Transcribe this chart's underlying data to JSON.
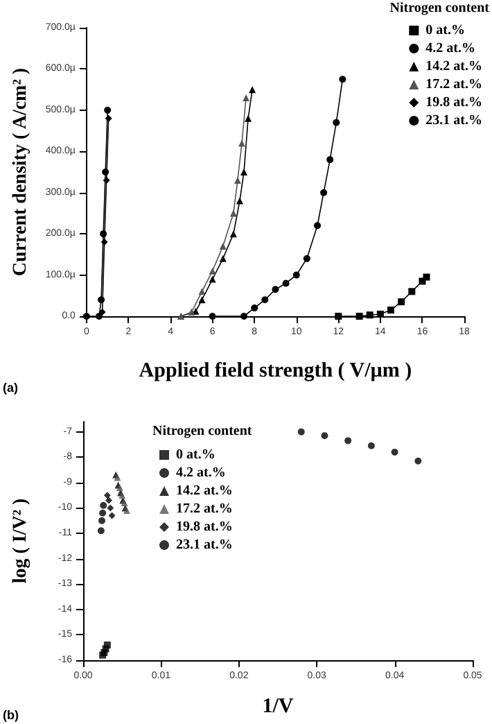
{
  "chart_data": [
    {
      "type": "line",
      "xlabel": "Applied field strength ( V/µm )",
      "ylabel": "Current density ( A/cm² )",
      "legend_title": "Nitrogen content",
      "legend": "top right",
      "line_style": "solid",
      "annotations": [
        "(a)"
      ],
      "xlim": [
        0,
        18
      ],
      "xticks": [
        0,
        2,
        4,
        6,
        8,
        10,
        12,
        14,
        16,
        18
      ],
      "ylim": [
        0,
        700
      ],
      "yticks": [
        {
          "value": 0,
          "label": "0.0"
        },
        {
          "value": 100,
          "label": "100.0µ"
        },
        {
          "value": 200,
          "label": "200.0µ"
        },
        {
          "value": 300,
          "label": "300.0µ"
        },
        {
          "value": 400,
          "label": "400.0µ"
        },
        {
          "value": 500,
          "label": "500.0µ"
        },
        {
          "value": 600,
          "label": "600.0µ"
        },
        {
          "value": 700,
          "label": "700.0µ"
        }
      ],
      "series": [
        {
          "name": "0 at.%",
          "color": "#000000",
          "marker": "square",
          "x": [
            12,
            13,
            13.5,
            14,
            14.5,
            15,
            15.5,
            16,
            16.2
          ],
          "values": [
            0,
            0,
            3,
            5,
            15,
            35,
            60,
            85,
            95
          ]
        },
        {
          "name": "4.2 at.%",
          "color": "#000000",
          "marker": "circle",
          "x": [
            6,
            7.5,
            8,
            8.5,
            9,
            9.5,
            10,
            10.5,
            11,
            11.3,
            11.6,
            11.9,
            12.2
          ],
          "values": [
            0,
            0,
            20,
            40,
            65,
            80,
            100,
            140,
            220,
            300,
            380,
            470,
            575
          ]
        },
        {
          "name": "14.2 at.%",
          "color": "#000000",
          "marker": "triangle",
          "x": [
            4.5,
            5.2,
            5.5,
            6,
            6.5,
            7,
            7.3,
            7.5,
            7.7,
            7.9
          ],
          "values": [
            0,
            12,
            40,
            90,
            140,
            200,
            280,
            350,
            480,
            550
          ]
        },
        {
          "name": "17.2 at.%",
          "color": "#555555",
          "marker": "triangle",
          "x": [
            4.5,
            5,
            5.5,
            6,
            6.5,
            7,
            7.2,
            7.4,
            7.6
          ],
          "values": [
            0,
            10,
            60,
            110,
            170,
            250,
            330,
            420,
            530
          ]
        },
        {
          "name": "19.8 at.%",
          "color": "#000000",
          "marker": "diamond",
          "x": [
            0.75,
            0.85,
            0.95,
            1.05
          ],
          "values": [
            10,
            180,
            330,
            480
          ]
        },
        {
          "name": "23.1 at.%",
          "color": "#000000",
          "marker": "circle",
          "x": [
            0,
            0.6,
            0.7,
            0.8,
            0.9,
            1.0
          ],
          "values": [
            0,
            0,
            40,
            200,
            350,
            500
          ]
        }
      ]
    },
    {
      "type": "scatter",
      "xlabel": "1/V",
      "ylabel": "log ( I/V² )",
      "legend_title": "Nitrogen content",
      "legend": "top",
      "annotations": [
        "(b)"
      ],
      "xlim": [
        0,
        0.05
      ],
      "xticks": [
        {
          "value": 0,
          "label": "0.00"
        },
        {
          "value": 0.01,
          "label": "0.01"
        },
        {
          "value": 0.02,
          "label": "0.02"
        },
        {
          "value": 0.03,
          "label": "0.03"
        },
        {
          "value": 0.04,
          "label": "0.04"
        },
        {
          "value": 0.05,
          "label": "0.05"
        }
      ],
      "ylim": [
        -16,
        -6.6
      ],
      "yticks": [
        -16,
        -15,
        -14,
        -13,
        -12,
        -11,
        -10,
        -9,
        -8,
        -7
      ],
      "series": [
        {
          "name": "0 at.%",
          "color": "#000000",
          "marker": "square",
          "x": [
            0.0025,
            0.0027,
            0.0029,
            0.0031
          ],
          "values": [
            -15.8,
            -15.7,
            -15.55,
            -15.4
          ]
        },
        {
          "name": "4.2 at.%",
          "color": "#000000",
          "marker": "circle",
          "x": [
            0.0023,
            0.0024,
            0.0025,
            0.0026
          ],
          "values": [
            -10.9,
            -10.5,
            -10.2,
            -9.9
          ]
        },
        {
          "name": "14.2 at.%",
          "color": "#000000",
          "marker": "triangle",
          "x": [
            0.0042,
            0.0045,
            0.0048,
            0.0051,
            0.0054
          ],
          "values": [
            -8.7,
            -9.1,
            -9.4,
            -9.7,
            -10.0
          ]
        },
        {
          "name": "17.2 at.%",
          "color": "#555555",
          "marker": "triangle",
          "x": [
            0.0044,
            0.0047,
            0.005,
            0.0053,
            0.0056
          ],
          "values": [
            -8.8,
            -9.2,
            -9.5,
            -9.8,
            -10.1
          ]
        },
        {
          "name": "19.8 at.%",
          "color": "#000000",
          "marker": "diamond",
          "x": [
            0.0031,
            0.0033,
            0.0035,
            0.0037
          ],
          "values": [
            -9.5,
            -9.7,
            -10.0,
            -10.3
          ]
        },
        {
          "name": "23.1 at.%",
          "color": "#000000",
          "marker": "circle",
          "x": [
            0.028,
            0.031,
            0.034,
            0.037,
            0.04,
            0.043
          ],
          "values": [
            -7.0,
            -7.15,
            -7.35,
            -7.55,
            -7.8,
            -8.15
          ]
        }
      ]
    }
  ]
}
